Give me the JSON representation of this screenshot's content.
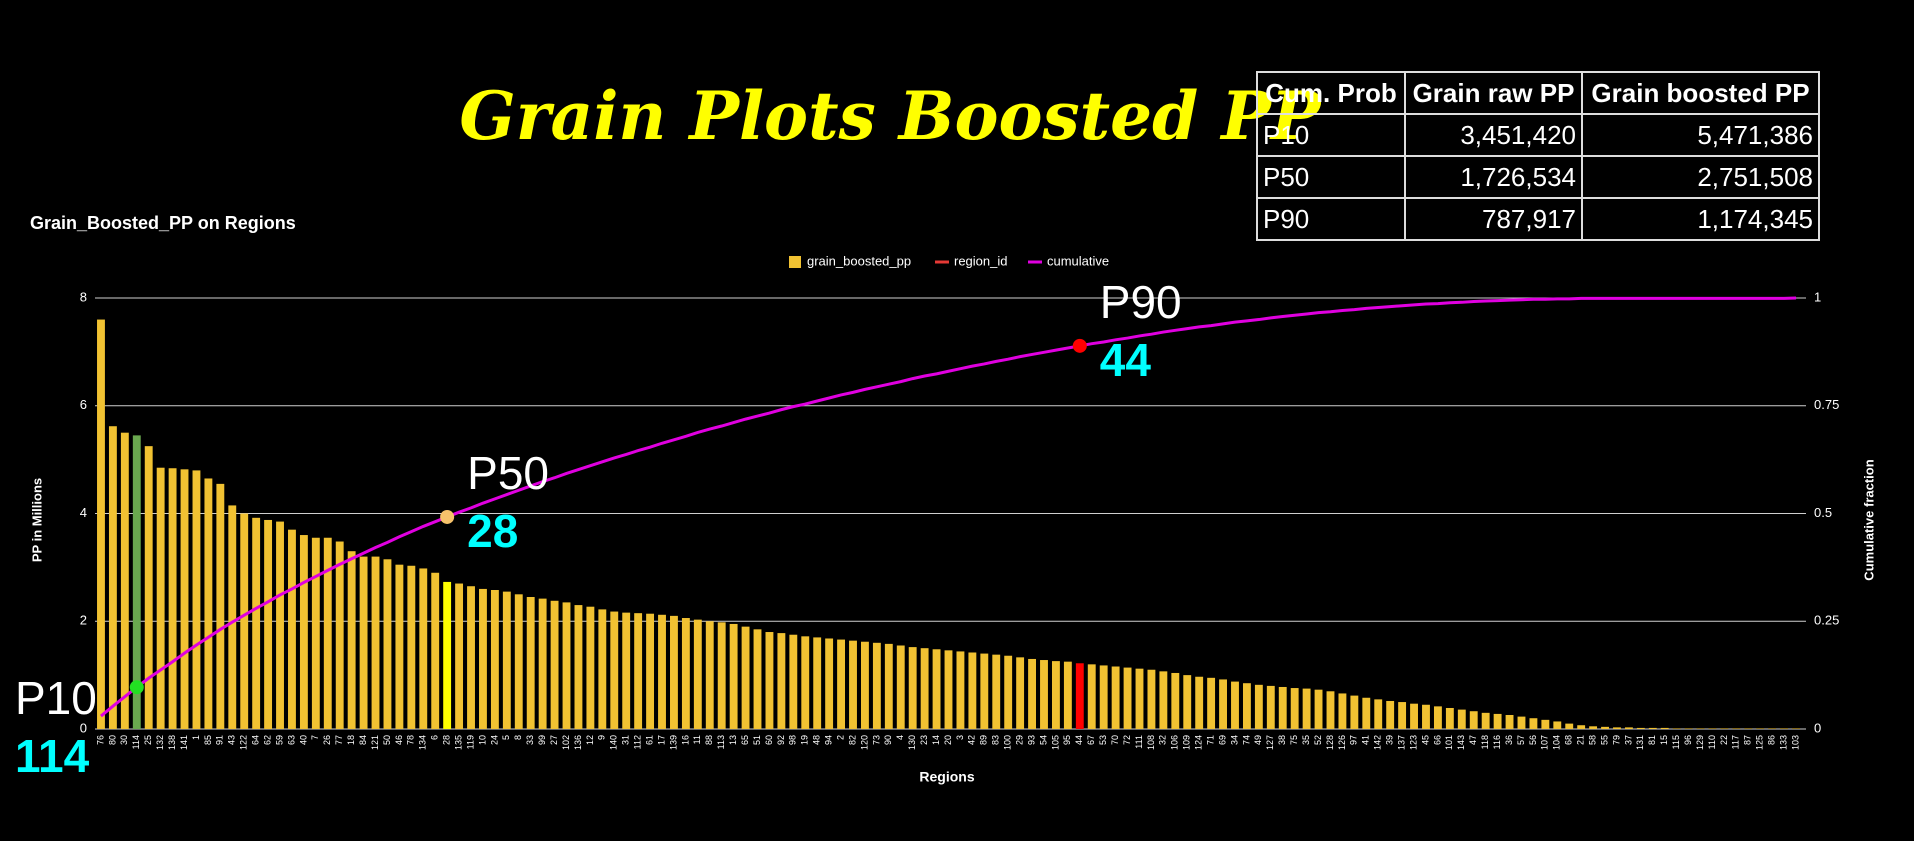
{
  "header": {
    "title": "Grain Plots Boosted PP"
  },
  "table": {
    "columns": [
      "Cum. Prob",
      "Grain raw PP",
      "Grain boosted PP"
    ],
    "rows": [
      [
        "P10",
        "3,451,420",
        "5,471,386"
      ],
      [
        "P50",
        "1,726,534",
        "2,751,508"
      ],
      [
        "P90",
        "787,917",
        "1,174,345"
      ]
    ]
  },
  "chart_data": {
    "type": "combo",
    "title": "Grain_Boosted_PP on Regions",
    "xlabel": "Regions",
    "ylabel": "PP in Millions",
    "y2label": "Cumulative fraction",
    "categories": [
      "76",
      "80",
      "30",
      "114",
      "25",
      "132",
      "138",
      "141",
      "1",
      "85",
      "91",
      "43",
      "122",
      "64",
      "62",
      "59",
      "63",
      "40",
      "7",
      "26",
      "77",
      "18",
      "84",
      "121",
      "50",
      "46",
      "78",
      "134",
      "6",
      "28",
      "135",
      "119",
      "10",
      "24",
      "5",
      "8",
      "33",
      "99",
      "27",
      "102",
      "136",
      "12",
      "9",
      "140",
      "31",
      "112",
      "61",
      "17",
      "139",
      "16",
      "11",
      "88",
      "113",
      "13",
      "65",
      "51",
      "60",
      "92",
      "98",
      "19",
      "48",
      "94",
      "2",
      "82",
      "120",
      "73",
      "90",
      "4",
      "130",
      "23",
      "14",
      "20",
      "3",
      "42",
      "89",
      "83",
      "100",
      "29",
      "93",
      "54",
      "105",
      "95",
      "44",
      "67",
      "53",
      "70",
      "72",
      "111",
      "108",
      "32",
      "106",
      "109",
      "124",
      "71",
      "69",
      "34",
      "74",
      "49",
      "127",
      "38",
      "75",
      "35",
      "52",
      "128",
      "126",
      "97",
      "41",
      "142",
      "39",
      "137",
      "123",
      "45",
      "66",
      "101",
      "143",
      "47",
      "118",
      "116",
      "36",
      "57",
      "56",
      "107",
      "104",
      "68",
      "21",
      "58",
      "55",
      "79",
      "37",
      "131",
      "81",
      "15",
      "115",
      "96",
      "129",
      "110",
      "22",
      "117",
      "87",
      "125",
      "86",
      "133",
      "103"
    ],
    "series": [
      {
        "name": "grain_boosted_pp",
        "type": "bar",
        "color": "#f1c232",
        "values": [
          7.6,
          5.62,
          5.5,
          5.45,
          5.25,
          4.85,
          4.84,
          4.82,
          4.8,
          4.65,
          4.55,
          4.15,
          4.0,
          3.92,
          3.88,
          3.85,
          3.7,
          3.6,
          3.55,
          3.55,
          3.48,
          3.3,
          3.2,
          3.2,
          3.15,
          3.05,
          3.03,
          2.98,
          2.9,
          2.73,
          2.7,
          2.65,
          2.6,
          2.58,
          2.55,
          2.5,
          2.45,
          2.42,
          2.38,
          2.35,
          2.3,
          2.27,
          2.22,
          2.18,
          2.16,
          2.15,
          2.14,
          2.12,
          2.1,
          2.06,
          2.03,
          2.0,
          1.98,
          1.95,
          1.9,
          1.85,
          1.8,
          1.78,
          1.75,
          1.72,
          1.7,
          1.68,
          1.66,
          1.64,
          1.62,
          1.6,
          1.58,
          1.55,
          1.52,
          1.5,
          1.48,
          1.46,
          1.44,
          1.42,
          1.4,
          1.38,
          1.36,
          1.33,
          1.3,
          1.28,
          1.26,
          1.25,
          1.22,
          1.2,
          1.18,
          1.16,
          1.14,
          1.12,
          1.1,
          1.07,
          1.04,
          1.0,
          0.97,
          0.95,
          0.92,
          0.88,
          0.85,
          0.82,
          0.8,
          0.78,
          0.76,
          0.75,
          0.73,
          0.7,
          0.66,
          0.62,
          0.58,
          0.55,
          0.52,
          0.5,
          0.47,
          0.45,
          0.42,
          0.39,
          0.36,
          0.33,
          0.3,
          0.28,
          0.26,
          0.23,
          0.2,
          0.17,
          0.14,
          0.1,
          0.07,
          0.05,
          0.04,
          0.03,
          0.03,
          0.02,
          0.02,
          0.02,
          0.01,
          0.01,
          0.01,
          0.01,
          0.01,
          0.01,
          0.01,
          0.01,
          0.01,
          0.01,
          0.01
        ]
      },
      {
        "name": "region_id",
        "type": "line",
        "color": "#e53935"
      },
      {
        "name": "cumulative",
        "type": "line",
        "color": "#e000e0",
        "axis": "y2",
        "values": [
          0.03,
          0.053,
          0.075,
          0.097,
          0.118,
          0.137,
          0.156,
          0.176,
          0.195,
          0.213,
          0.231,
          0.248,
          0.264,
          0.28,
          0.295,
          0.311,
          0.325,
          0.34,
          0.354,
          0.368,
          0.382,
          0.395,
          0.408,
          0.421,
          0.433,
          0.446,
          0.458,
          0.47,
          0.481,
          0.492,
          0.503,
          0.513,
          0.524,
          0.534,
          0.544,
          0.554,
          0.564,
          0.574,
          0.583,
          0.593,
          0.602,
          0.611,
          0.62,
          0.629,
          0.637,
          0.646,
          0.654,
          0.663,
          0.671,
          0.679,
          0.688,
          0.696,
          0.703,
          0.711,
          0.719,
          0.726,
          0.733,
          0.741,
          0.748,
          0.754,
          0.761,
          0.768,
          0.775,
          0.781,
          0.788,
          0.794,
          0.8,
          0.806,
          0.813,
          0.819,
          0.824,
          0.83,
          0.836,
          0.842,
          0.847,
          0.853,
          0.858,
          0.864,
          0.869,
          0.874,
          0.879,
          0.884,
          0.889,
          0.894,
          0.898,
          0.903,
          0.907,
          0.912,
          0.916,
          0.921,
          0.925,
          0.929,
          0.933,
          0.936,
          0.94,
          0.944,
          0.947,
          0.95,
          0.954,
          0.957,
          0.96,
          0.963,
          0.966,
          0.968,
          0.971,
          0.973,
          0.976,
          0.978,
          0.98,
          0.982,
          0.984,
          0.986,
          0.987,
          0.989,
          0.99,
          0.992,
          0.993,
          0.994,
          0.995,
          0.996,
          0.997,
          0.997,
          0.998,
          0.998,
          0.999,
          0.999,
          0.999,
          0.999,
          0.999,
          0.999,
          0.999,
          0.999,
          0.999,
          0.999,
          0.999,
          0.999,
          0.999,
          0.999,
          0.999,
          0.999,
          0.999,
          0.999,
          1
        ]
      }
    ],
    "annotations": [
      {
        "label": "P10",
        "category_index": 3,
        "bar_color": "#6aa84f",
        "marker_color": "#22e022"
      },
      {
        "label": "P50",
        "category_index": 29,
        "bar_color": "#ffff00",
        "marker_color": "#f6c26b"
      },
      {
        "label": "P90",
        "category_index": 82,
        "bar_color": "#ff0000",
        "marker_color": "#ff0000"
      }
    ],
    "ylim": [
      0,
      8
    ],
    "yticks": [
      0,
      2,
      4,
      6,
      8
    ],
    "y2lim": [
      0,
      1
    ],
    "y2ticks": [
      0,
      0.25,
      0.5,
      0.75,
      1
    ],
    "grid": true,
    "legend": "top"
  }
}
